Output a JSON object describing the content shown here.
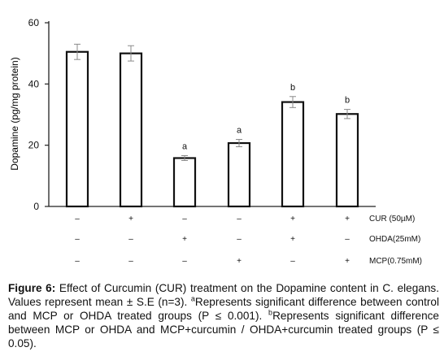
{
  "chart_data": {
    "type": "bar",
    "categories": [
      "Control",
      "CUR",
      "OHDA",
      "MCP",
      "OHDA+CUR",
      "MCP+CUR"
    ],
    "values": [
      50.5,
      50,
      15.8,
      20.7,
      34.1,
      30.2
    ],
    "errors": [
      2.5,
      2.5,
      0.8,
      1.2,
      1.8,
      1.5
    ],
    "annotations": [
      "",
      "",
      "a",
      "a",
      "b",
      "b"
    ],
    "ylabel": "Dopamine (pg/mg protein)",
    "xlabel": "",
    "ylim": [
      0,
      60
    ],
    "yticks": [
      0,
      20,
      40,
      60
    ],
    "grid": false,
    "treatment_rows": [
      {
        "label": "CUR (50µM)",
        "marks": [
          "–",
          "+",
          "–",
          "–",
          "+",
          "+"
        ]
      },
      {
        "label": "OHDA(25mM)",
        "marks": [
          "–",
          "–",
          "+",
          "–",
          "+",
          "–"
        ]
      },
      {
        "label": "MCP(0.75mM)",
        "marks": [
          "–",
          "–",
          "–",
          "+",
          "–",
          "+"
        ]
      }
    ]
  },
  "caption": {
    "label": "Figure 6:",
    "text1": " Effect of Curcumin (CUR) treatment on the Dopamine content in C. elegans. Values represent mean ± S.E (n=3). ",
    "sup_a": "a",
    "text2": "Represents significant difference between control and MCP or OHDA treated groups (P ≤ 0.001). ",
    "sup_b": "b",
    "text3": "Represents significant difference between MCP or OHDA and MCP+curcumin / OHDA+curcumin treated groups (P ≤ 0.05)."
  }
}
